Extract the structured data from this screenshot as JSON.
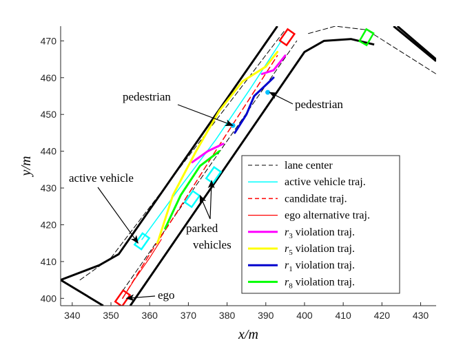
{
  "chart_data": {
    "type": "line",
    "title": "",
    "xlabel": "x/m",
    "ylabel": "y/m",
    "xlim": [
      337,
      434
    ],
    "ylim": [
      398,
      474
    ],
    "xticks": [
      340,
      350,
      360,
      370,
      380,
      390,
      400,
      410,
      420,
      430
    ],
    "yticks": [
      400,
      410,
      420,
      430,
      440,
      450,
      460,
      470
    ],
    "road_boundaries": [
      {
        "name": "left-edge",
        "x": [
          337,
          347,
          352,
          393
        ],
        "y": [
          405,
          409,
          412,
          474
        ]
      },
      {
        "name": "lower-left-edge",
        "x": [
          337,
          348
        ],
        "y": [
          405,
          398
        ]
      },
      {
        "name": "right-edge",
        "x": [
          355,
          400,
          405,
          412,
          418
        ],
        "y": [
          398,
          467,
          470,
          470.5,
          469
        ]
      },
      {
        "name": "far-right-edge",
        "x": [
          424,
          434
        ],
        "y": [
          474,
          465
        ]
      },
      {
        "name": "upper-right-edge",
        "x": [
          423,
          434
        ],
        "y": [
          474,
          464.5
        ]
      }
    ],
    "series": [
      {
        "name": "lane center",
        "style": "dashed",
        "color": "#000000",
        "lines": [
          {
            "x": [
              342,
              350,
              395
            ],
            "y": [
              405,
              411,
              473
            ]
          },
          {
            "x": [
              353,
              398
            ],
            "y": [
              402,
              470
            ]
          },
          {
            "x": [
              401,
              408,
              416,
              434
            ],
            "y": [
              472,
              474,
              473,
              461
            ]
          }
        ]
      },
      {
        "name": "active vehicle traj.",
        "style": "solid",
        "color": "#00ffff",
        "lines": [
          {
            "x": [
              358,
              367,
              377,
              386,
              394
            ],
            "y": [
              416,
              429,
              443,
              457,
              470
            ]
          }
        ]
      },
      {
        "name": "candidate traj.",
        "style": "dashed",
        "color": "#ff0000",
        "lines": [
          {
            "x": [
              353,
              360,
              368,
              377,
              385,
              393
            ],
            "y": [
              400,
              412,
              425,
              440,
              453,
              466
            ]
          }
        ]
      },
      {
        "name": "ego alternative traj.",
        "style": "solid",
        "color": "#ff0000",
        "lines": [
          {
            "x": [
              353,
              356,
              360,
              363
            ],
            "y": [
              400,
              405,
              411,
              416
            ]
          }
        ]
      },
      {
        "name": "r3 violation traj.",
        "style": "solid",
        "color": "#ff00ff",
        "lines": [
          {
            "x": [
              371,
              375,
              379
            ],
            "y": [
              437,
              440,
              442
            ]
          },
          {
            "x": [
              389,
              392,
              395
            ],
            "y": [
              461,
              462,
              466
            ]
          }
        ]
      },
      {
        "name": "r5 violation traj.",
        "style": "solid",
        "color": "#ffff00",
        "lines": [
          {
            "x": [
              362,
              366,
              372,
              378,
              384,
              390,
              393
            ],
            "y": [
              415,
              428,
              440,
              451,
              459,
              463,
              467
            ]
          }
        ]
      },
      {
        "name": "r1 violation traj.",
        "style": "solid",
        "color": "#0000cd",
        "lines": [
          {
            "x": [
              382,
              385,
              387,
              390,
              392
            ],
            "y": [
              445,
              450,
              455,
              458,
              460
            ]
          }
        ]
      },
      {
        "name": "r8 violation traj.",
        "style": "solid",
        "color": "#00ff00",
        "lines": [
          {
            "x": [
              364,
              368,
              373,
              378
            ],
            "y": [
              419,
              428,
              436,
              440
            ]
          }
        ]
      }
    ],
    "objects": [
      {
        "name": "ego",
        "x": 353,
        "y": 400,
        "angle": 55,
        "color": "#ff0000"
      },
      {
        "name": "active vehicle",
        "x": 358,
        "y": 415.5,
        "angle": 55,
        "color": "#00ffff"
      },
      {
        "name": "parked vehicle",
        "x": 371,
        "y": 427,
        "angle": 55,
        "color": "#00ffff"
      },
      {
        "name": "parked vehicle",
        "x": 376.5,
        "y": 433.5,
        "angle": 55,
        "color": "#00ffff"
      },
      {
        "name": "red vehicle",
        "x": 395.5,
        "y": 471,
        "angle": 55,
        "color": "#ff0000"
      },
      {
        "name": "green vehicle",
        "x": 416,
        "y": 471,
        "angle": 60,
        "color": "#00ff00"
      }
    ],
    "pedestrians": [
      {
        "x": 381.5,
        "y": 447,
        "color": "#00bfff"
      },
      {
        "x": 390.5,
        "y": 456,
        "color": "#00bfff"
      }
    ],
    "annotations": [
      {
        "text": "pedestrian",
        "target": [
          381.5,
          447
        ]
      },
      {
        "text": "pedestrian",
        "target": [
          391,
          456
        ]
      },
      {
        "text": "active vehicle",
        "target": [
          357,
          415
        ]
      },
      {
        "text": "parked",
        "target": [
          373,
          428
        ]
      },
      {
        "text": "vehicles",
        "target": [
          376,
          432
        ]
      },
      {
        "text": "ego",
        "target": [
          354,
          400
        ]
      }
    ],
    "legend": {
      "position": "lower-right",
      "entries": [
        {
          "label": "lane center",
          "color": "#000000",
          "style": "dashed",
          "width": 1
        },
        {
          "label": "active vehicle traj.",
          "color": "#00ffff",
          "style": "solid",
          "width": 1.5
        },
        {
          "label": "candidate traj.",
          "color": "#ff0000",
          "style": "dashed",
          "width": 1.5
        },
        {
          "label": "ego alternative traj.",
          "color": "#ff0000",
          "style": "solid",
          "width": 1.2
        },
        {
          "label": "violation traj.",
          "sub": "3",
          "color": "#ff00ff",
          "style": "solid",
          "width": 3
        },
        {
          "label": "violation traj.",
          "sub": "5",
          "color": "#ffff00",
          "style": "solid",
          "width": 3
        },
        {
          "label": "violation traj.",
          "sub": "1",
          "color": "#0000cd",
          "style": "solid",
          "width": 3
        },
        {
          "label": "violation traj.",
          "sub": "8",
          "color": "#00ff00",
          "style": "solid",
          "width": 3
        }
      ]
    }
  }
}
